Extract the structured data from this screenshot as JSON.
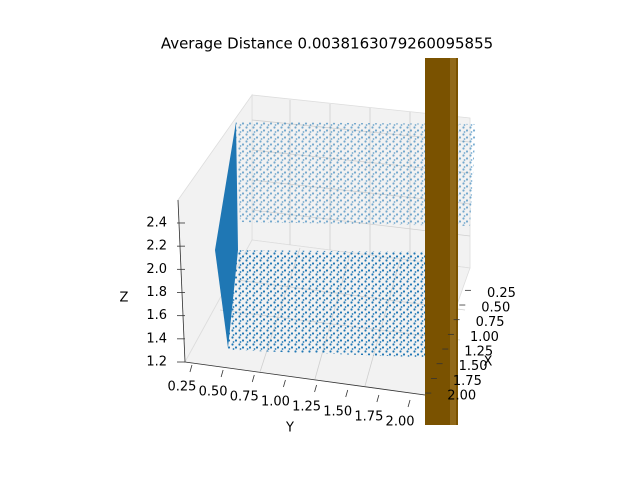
{
  "chart_data": {
    "type": "scatter3d",
    "title": "Average Distance 0.0038163079260095855",
    "xlabel": "X",
    "ylabel": "Y",
    "zlabel": "Z",
    "color": "#1f77b4",
    "xlim": [
      0.2,
      2.05
    ],
    "ylim": [
      0.15,
      2.1
    ],
    "zlim": [
      1.15,
      2.5
    ],
    "xticks": [
      0.25,
      {
        "value": 0.5,
        "label": "0.50"
      },
      0.75,
      {
        "value": 1,
        "label": "1.00"
      },
      1.25,
      {
        "value": 1.5,
        "label": "1.50"
      },
      1.75,
      {
        "value": 2,
        "label": "2.00"
      }
    ],
    "yticks": [
      0.25,
      {
        "value": 0.5,
        "label": "0.50"
      },
      0.75,
      {
        "value": 1,
        "label": "1.00"
      },
      1.25,
      {
        "value": 1.5,
        "label": "1.50"
      },
      1.75,
      {
        "value": 2,
        "label": "2.00"
      }
    ],
    "zticks": [
      1.2,
      1.4,
      1.6,
      1.8,
      {
        "value": 2,
        "label": "2.0"
      },
      2.2,
      2.4
    ]
  }
}
